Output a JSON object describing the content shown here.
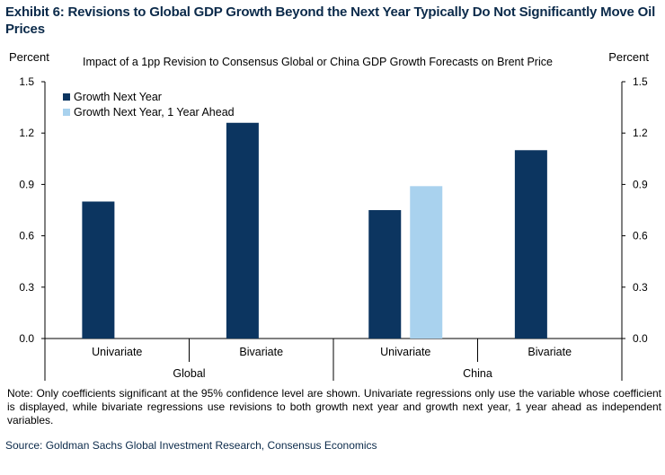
{
  "title": "Exhibit 6: Revisions to Global GDP Growth Beyond the Next Year Typically Do Not Significantly Move Oil Prices",
  "chart_data": {
    "type": "bar",
    "subtitle": "Impact of a 1pp Revision to Consensus Global or China GDP Growth Forecasts on Brent Price",
    "ylabel_left": "Percent",
    "ylabel_right": "Percent",
    "ylim": [
      0,
      1.5
    ],
    "yticks": [
      "1.5",
      "1.2",
      "0.9",
      "0.6",
      "0.3",
      "0.0"
    ],
    "groups": [
      {
        "label": "Global",
        "categories": [
          "Univariate",
          "Bivariate"
        ]
      },
      {
        "label": "China",
        "categories": [
          "Univariate",
          "Bivariate"
        ]
      }
    ],
    "series": [
      {
        "name": "Growth Next Year",
        "color": "#0c3560",
        "values": [
          0.8,
          1.26,
          0.75,
          1.1
        ]
      },
      {
        "name": "Growth Next Year, 1 Year Ahead",
        "color": "#a9d2ee",
        "values": [
          null,
          null,
          0.89,
          null
        ]
      }
    ],
    "legend_position": "top-left"
  },
  "note": "Note: Only coefficients significant at the 95% confidence level are shown. Univariate regressions only use the variable whose coefficient is displayed, while bivariate regressions use revisions to both growth next year and growth next year, 1 year ahead as independent variables.",
  "source": "Source: Goldman Sachs Global Investment Research, Consensus Economics"
}
